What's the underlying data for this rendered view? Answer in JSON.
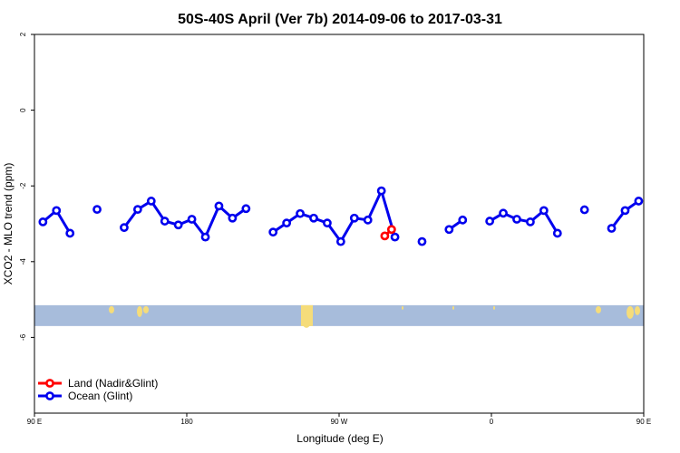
{
  "chart_data": {
    "type": "line",
    "title": "50S-40S April (Ver 7b)   2014-09-06 to 2017-03-31",
    "xlabel": "Longitude (deg E)",
    "ylabel": "XCO2 - MLO trend (ppm)",
    "xlim": [
      90,
      450
    ],
    "ylim": [
      -8,
      2
    ],
    "x_ticks": [
      {
        "value": 90,
        "label": "90 E"
      },
      {
        "value": 180,
        "label": "180"
      },
      {
        "value": 270,
        "label": "90 W"
      },
      {
        "value": 360,
        "label": "0"
      },
      {
        "value": 450,
        "label": "90 E"
      },
      {
        "value": 540,
        "label": "180"
      }
    ],
    "y_ticks": [
      {
        "value": 2,
        "label": "2"
      },
      {
        "value": 0,
        "label": "0"
      },
      {
        "value": -2,
        "label": "-2"
      },
      {
        "value": -4,
        "label": "-4"
      },
      {
        "value": -6,
        "label": "-6"
      }
    ],
    "grid": false,
    "legend_position": "bottom-left",
    "land_strip": {
      "y_range": [
        -5.7,
        -5.15
      ],
      "ocean_color": "#a7bcdb",
      "land_color": "#f5dc7a"
    },
    "series": [
      {
        "name": "Land (Nadir&Glint)",
        "color": "#ff0000",
        "segments": [
          [
            [
              297,
              -3.32
            ],
            [
              301,
              -3.15
            ]
          ]
        ]
      },
      {
        "name": "Ocean (Glint)",
        "color": "#0000ee",
        "segments": [
          [
            [
              95,
              -2.95
            ],
            [
              103,
              -2.65
            ],
            [
              111,
              -3.25
            ]
          ],
          [
            [
              127,
              -2.62
            ]
          ],
          [
            [
              143,
              -3.1
            ],
            [
              151,
              -2.62
            ],
            [
              159,
              -2.4
            ],
            [
              167,
              -2.93
            ],
            [
              175,
              -3.03
            ],
            [
              183,
              -2.88
            ],
            [
              191,
              -3.35
            ],
            [
              199,
              -2.53
            ],
            [
              207,
              -2.85
            ],
            [
              215,
              -2.6
            ]
          ],
          [
            [
              231,
              -3.22
            ],
            [
              239,
              -2.98
            ],
            [
              247,
              -2.73
            ],
            [
              255,
              -2.85
            ],
            [
              263,
              -2.98
            ],
            [
              271,
              -3.47
            ],
            [
              279,
              -2.85
            ],
            [
              287,
              -2.9
            ],
            [
              295,
              -2.13
            ],
            [
              303,
              -3.35
            ]
          ],
          [
            [
              319,
              -3.47
            ]
          ],
          [
            [
              335,
              -3.15
            ],
            [
              343,
              -2.9
            ]
          ],
          [
            [
              359,
              -2.93
            ],
            [
              367,
              -2.72
            ],
            [
              375,
              -2.88
            ],
            [
              383,
              -2.95
            ],
            [
              391,
              -2.65
            ],
            [
              399,
              -3.25
            ]
          ],
          [
            [
              415,
              -2.63
            ]
          ],
          [
            [
              431,
              -3.12
            ],
            [
              439,
              -2.65
            ],
            [
              447,
              -2.4
            ]
          ]
        ]
      }
    ]
  }
}
